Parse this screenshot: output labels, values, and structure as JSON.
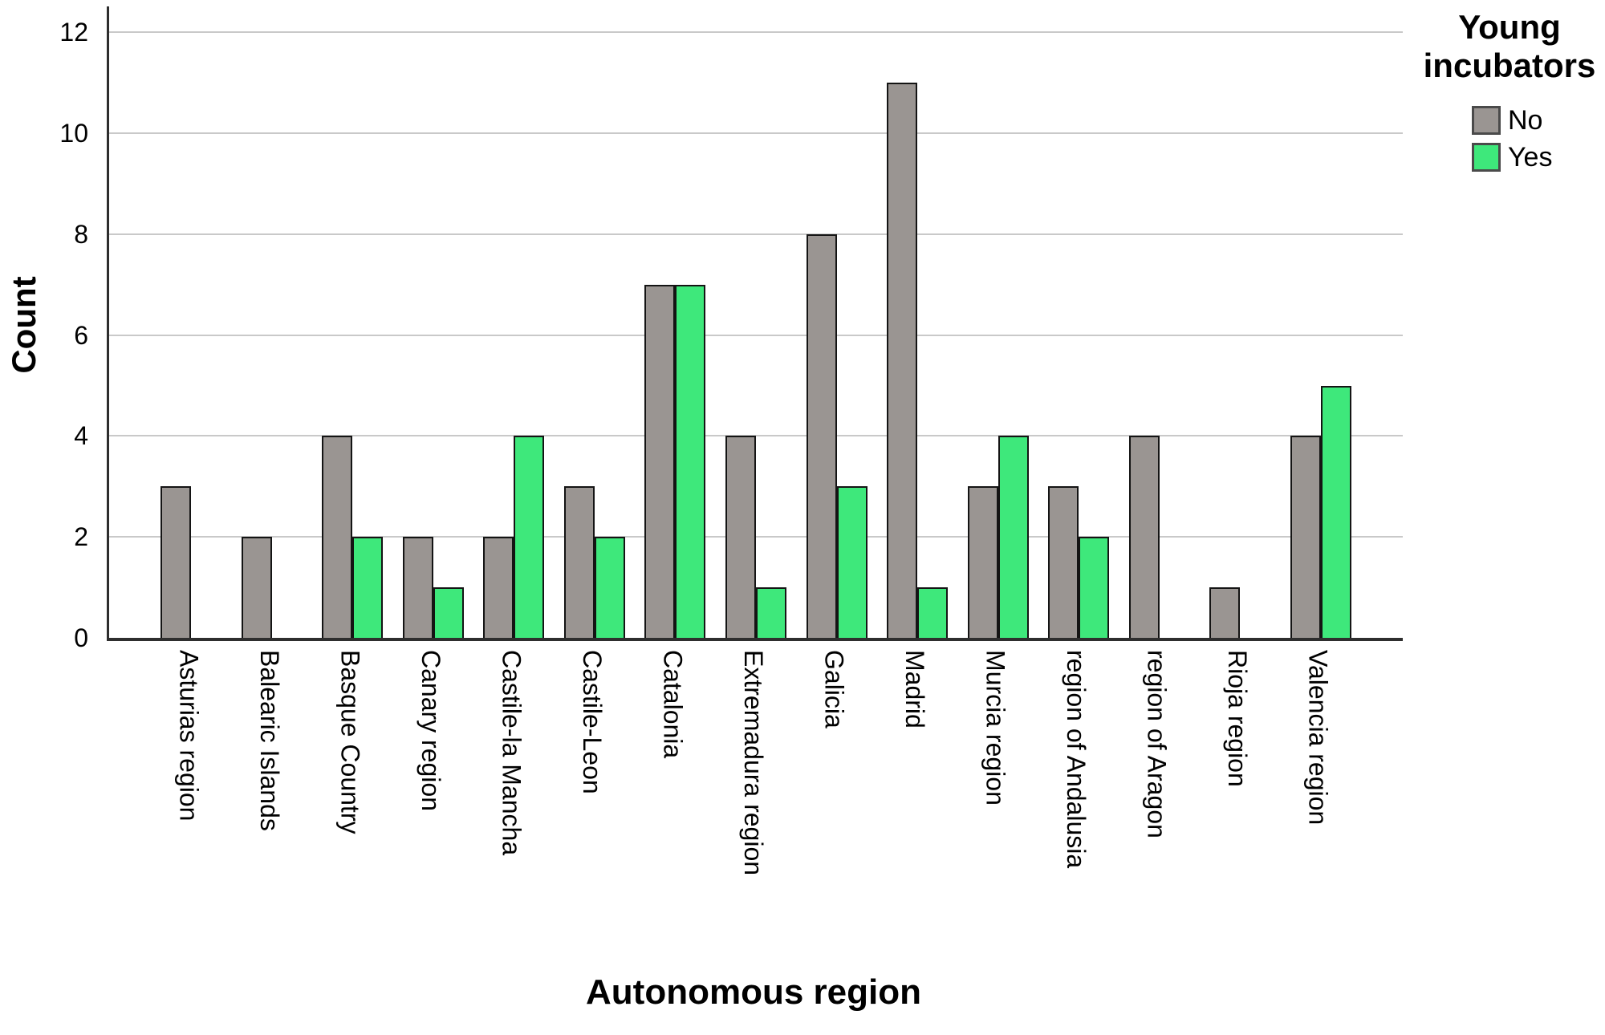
{
  "chart_data": {
    "type": "bar",
    "title": "",
    "legend_title": "Young incubators",
    "xlabel": "Autonomous region",
    "ylabel": "Count",
    "ylim": [
      0,
      12
    ],
    "yticks": [
      0,
      2,
      4,
      6,
      8,
      10,
      12
    ],
    "grid": "horizontal",
    "legend_position": "top-right",
    "categories": [
      "Asturias region",
      "Balearic Islands",
      "Basque Country",
      "Canary region",
      "Castile-la Mancha",
      "Castile-Leon",
      "Catalonia",
      "Extremadura region",
      "Galicia",
      "Madrid",
      "Murcia region",
      "region of Andalusia",
      "region of Aragon",
      "Rioja region",
      "Valencia region"
    ],
    "series": [
      {
        "name": "No",
        "color": "#9A9592",
        "values": [
          3,
          2,
          4,
          2,
          2,
          3,
          7,
          4,
          8,
          11,
          3,
          3,
          4,
          1,
          4
        ]
      },
      {
        "name": "Yes",
        "color": "#3EE87B",
        "values": [
          0,
          0,
          2,
          1,
          4,
          2,
          7,
          1,
          3,
          1,
          4,
          2,
          0,
          0,
          5
        ]
      }
    ],
    "colors": {
      "grid": "#c9c9c9",
      "bar_border": "#141414",
      "axis": "#2e2e2e"
    }
  }
}
